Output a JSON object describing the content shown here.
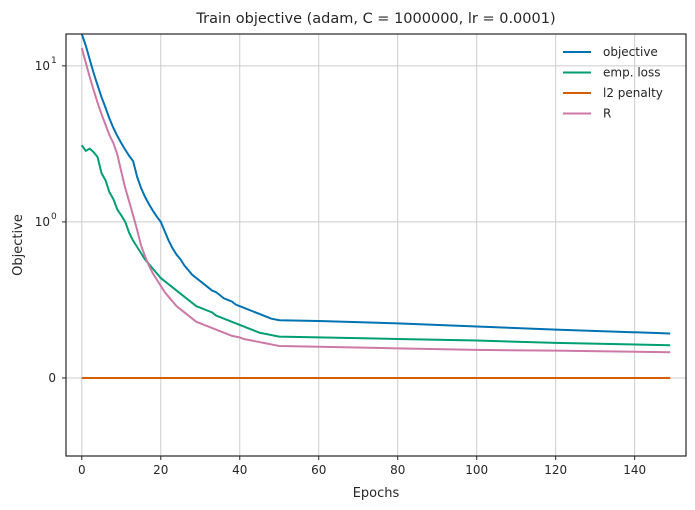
{
  "chart_data": {
    "type": "line",
    "title": "Train objective (adam, C = 1000000, lr = 0.0001)",
    "xlabel": "Epochs",
    "ylabel": "Objective",
    "yscale": "symlog",
    "linthresh": 1,
    "xlim": [
      -4,
      153
    ],
    "ylim": [
      -0.5,
      16
    ],
    "x_ticks": [
      0,
      20,
      40,
      60,
      80,
      100,
      120,
      140
    ],
    "y_ticks": [
      {
        "value": 0,
        "label": "0"
      },
      {
        "value": 1,
        "label": "10",
        "exp": "0"
      },
      {
        "value": 10,
        "label": "10",
        "exp": "1"
      }
    ],
    "grid": true,
    "legend_position": "top-right",
    "series": [
      {
        "name": "objective",
        "color": "#0072b2",
        "points": [
          [
            0,
            16
          ],
          [
            1,
            13.5
          ],
          [
            2,
            11
          ],
          [
            3,
            9
          ],
          [
            4,
            7.5
          ],
          [
            5,
            6.3
          ],
          [
            6,
            5.4
          ],
          [
            7,
            4.6
          ],
          [
            8,
            4.0
          ],
          [
            9,
            3.55
          ],
          [
            10,
            3.2
          ],
          [
            11,
            2.9
          ],
          [
            12,
            2.65
          ],
          [
            13,
            2.45
          ],
          [
            14,
            1.95
          ],
          [
            15,
            1.65
          ],
          [
            16,
            1.45
          ],
          [
            17,
            1.3
          ],
          [
            18,
            1.18
          ],
          [
            19,
            1.08
          ],
          [
            20,
            1.0
          ],
          [
            21,
            0.94
          ],
          [
            22,
            0.88
          ],
          [
            23,
            0.83
          ],
          [
            24,
            0.79
          ],
          [
            25,
            0.76
          ],
          [
            26,
            0.72
          ],
          [
            27,
            0.69
          ],
          [
            28,
            0.66
          ],
          [
            29,
            0.64
          ],
          [
            30,
            0.62
          ],
          [
            31,
            0.6
          ],
          [
            32,
            0.58
          ],
          [
            33,
            0.56
          ],
          [
            34,
            0.55
          ],
          [
            35,
            0.53
          ],
          [
            36,
            0.51
          ],
          [
            37,
            0.5
          ],
          [
            38,
            0.49
          ],
          [
            39,
            0.47
          ],
          [
            40,
            0.46
          ],
          [
            41,
            0.45
          ],
          [
            42,
            0.44
          ],
          [
            43,
            0.43
          ],
          [
            44,
            0.42
          ],
          [
            45,
            0.41
          ],
          [
            46,
            0.4
          ],
          [
            47,
            0.39
          ],
          [
            48,
            0.38
          ],
          [
            49,
            0.375
          ],
          [
            50,
            0.37
          ],
          [
            60,
            0.365
          ],
          [
            80,
            0.35
          ],
          [
            100,
            0.33
          ],
          [
            120,
            0.31
          ],
          [
            149,
            0.285
          ]
        ]
      },
      {
        "name": "emp. loss",
        "color": "#009e73",
        "points": [
          [
            0,
            3.1
          ],
          [
            1,
            2.85
          ],
          [
            2,
            2.95
          ],
          [
            3,
            2.8
          ],
          [
            4,
            2.6
          ],
          [
            5,
            2.05
          ],
          [
            6,
            1.85
          ],
          [
            7,
            1.55
          ],
          [
            8,
            1.4
          ],
          [
            9,
            1.2
          ],
          [
            10,
            1.1
          ],
          [
            11,
            1.0
          ],
          [
            12,
            0.93
          ],
          [
            13,
            0.88
          ],
          [
            14,
            0.84
          ],
          [
            15,
            0.8
          ],
          [
            16,
            0.76
          ],
          [
            17,
            0.73
          ],
          [
            18,
            0.7
          ],
          [
            19,
            0.67
          ],
          [
            20,
            0.64
          ],
          [
            21,
            0.62
          ],
          [
            22,
            0.6
          ],
          [
            23,
            0.58
          ],
          [
            24,
            0.56
          ],
          [
            25,
            0.54
          ],
          [
            26,
            0.52
          ],
          [
            27,
            0.5
          ],
          [
            28,
            0.48
          ],
          [
            29,
            0.46
          ],
          [
            30,
            0.45
          ],
          [
            31,
            0.44
          ],
          [
            32,
            0.43
          ],
          [
            33,
            0.42
          ],
          [
            34,
            0.4
          ],
          [
            35,
            0.39
          ],
          [
            36,
            0.38
          ],
          [
            37,
            0.37
          ],
          [
            38,
            0.36
          ],
          [
            39,
            0.35
          ],
          [
            40,
            0.34
          ],
          [
            41,
            0.33
          ],
          [
            42,
            0.32
          ],
          [
            43,
            0.31
          ],
          [
            44,
            0.3
          ],
          [
            45,
            0.29
          ],
          [
            46,
            0.285
          ],
          [
            47,
            0.28
          ],
          [
            48,
            0.275
          ],
          [
            49,
            0.27
          ],
          [
            50,
            0.265
          ],
          [
            60,
            0.26
          ],
          [
            80,
            0.25
          ],
          [
            100,
            0.24
          ],
          [
            120,
            0.225
          ],
          [
            149,
            0.21
          ]
        ]
      },
      {
        "name": "l2 penalty",
        "color": "#d55e00",
        "points": [
          [
            0,
            0
          ],
          [
            149,
            0
          ]
        ]
      },
      {
        "name": "R",
        "color": "#cc79a7",
        "points": [
          [
            0,
            13
          ],
          [
            1,
            10.5
          ],
          [
            2,
            8.5
          ],
          [
            3,
            7
          ],
          [
            4,
            5.8
          ],
          [
            5,
            4.9
          ],
          [
            6,
            4.2
          ],
          [
            7,
            3.6
          ],
          [
            8,
            3.2
          ],
          [
            9,
            2.7
          ],
          [
            10,
            2.1
          ],
          [
            11,
            1.65
          ],
          [
            12,
            1.35
          ],
          [
            13,
            1.1
          ],
          [
            14,
            0.95
          ],
          [
            15,
            0.85
          ],
          [
            16,
            0.78
          ],
          [
            17,
            0.72
          ],
          [
            18,
            0.67
          ],
          [
            19,
            0.63
          ],
          [
            20,
            0.59
          ],
          [
            21,
            0.55
          ],
          [
            22,
            0.52
          ],
          [
            23,
            0.49
          ],
          [
            24,
            0.46
          ],
          [
            25,
            0.44
          ],
          [
            26,
            0.42
          ],
          [
            27,
            0.4
          ],
          [
            28,
            0.38
          ],
          [
            29,
            0.36
          ],
          [
            30,
            0.35
          ],
          [
            31,
            0.34
          ],
          [
            32,
            0.33
          ],
          [
            33,
            0.32
          ],
          [
            34,
            0.31
          ],
          [
            35,
            0.3
          ],
          [
            36,
            0.29
          ],
          [
            37,
            0.28
          ],
          [
            38,
            0.27
          ],
          [
            39,
            0.265
          ],
          [
            40,
            0.26
          ],
          [
            41,
            0.25
          ],
          [
            42,
            0.245
          ],
          [
            43,
            0.24
          ],
          [
            44,
            0.235
          ],
          [
            45,
            0.23
          ],
          [
            46,
            0.225
          ],
          [
            47,
            0.22
          ],
          [
            48,
            0.215
          ],
          [
            49,
            0.21
          ],
          [
            50,
            0.205
          ],
          [
            60,
            0.2
          ],
          [
            80,
            0.19
          ],
          [
            100,
            0.18
          ],
          [
            120,
            0.175
          ],
          [
            149,
            0.165
          ]
        ]
      }
    ]
  }
}
